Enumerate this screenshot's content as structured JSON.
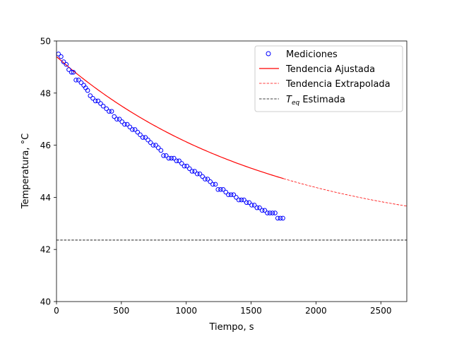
{
  "chart_data": {
    "type": "scatter",
    "xlabel": "Tiempo, s",
    "ylabel": "Temperatura, °C",
    "xlim": [
      0,
      2700
    ],
    "ylim": [
      40,
      50
    ],
    "xticks": [
      0,
      500,
      1000,
      1500,
      2000,
      2500
    ],
    "yticks": [
      40,
      42,
      44,
      46,
      48,
      50
    ],
    "grid": false,
    "legend_position": "top-right",
    "colors": {
      "measurements": "#0000ff",
      "fit": "#ff0000",
      "teq": "#000000"
    },
    "measurements": {
      "name": "Mediciones",
      "x": [
        15,
        35,
        55,
        75,
        95,
        115,
        130,
        150,
        170,
        190,
        210,
        225,
        240,
        260,
        280,
        300,
        320,
        340,
        360,
        385,
        405,
        425,
        445,
        465,
        485,
        505,
        525,
        545,
        565,
        585,
        605,
        625,
        645,
        665,
        685,
        705,
        725,
        745,
        765,
        785,
        805,
        825,
        845,
        865,
        885,
        905,
        925,
        945,
        965,
        985,
        1005,
        1025,
        1045,
        1065,
        1085,
        1105,
        1125,
        1145,
        1165,
        1185,
        1205,
        1225,
        1245,
        1265,
        1285,
        1305,
        1325,
        1345,
        1365,
        1385,
        1405,
        1425,
        1445,
        1465,
        1485,
        1505,
        1525,
        1545,
        1565,
        1585,
        1605,
        1625,
        1645,
        1665,
        1685,
        1705,
        1725,
        1745
      ],
      "y": [
        49.5,
        49.4,
        49.2,
        49.1,
        48.9,
        48.8,
        48.8,
        48.5,
        48.5,
        48.4,
        48.3,
        48.2,
        48.1,
        47.9,
        47.8,
        47.7,
        47.7,
        47.6,
        47.5,
        47.4,
        47.3,
        47.3,
        47.1,
        47.0,
        47.0,
        46.9,
        46.8,
        46.8,
        46.7,
        46.6,
        46.6,
        46.5,
        46.4,
        46.3,
        46.3,
        46.2,
        46.1,
        46.0,
        46.0,
        45.9,
        45.8,
        45.6,
        45.6,
        45.5,
        45.5,
        45.5,
        45.4,
        45.4,
        45.3,
        45.2,
        45.2,
        45.1,
        45.0,
        45.0,
        44.9,
        44.9,
        44.8,
        44.7,
        44.7,
        44.6,
        44.5,
        44.5,
        44.3,
        44.3,
        44.3,
        44.2,
        44.1,
        44.1,
        44.1,
        44.0,
        43.9,
        43.9,
        43.9,
        43.8,
        43.8,
        43.7,
        43.7,
        43.6,
        43.6,
        43.5,
        43.5,
        43.4,
        43.4,
        43.4,
        43.4,
        43.2,
        43.2,
        43.2
      ]
    },
    "fit": {
      "name": "Tendencia Ajustada",
      "model": "exponential",
      "teq": 42.36,
      "amplitude": 7.04,
      "tau": 1600,
      "x_range": [
        0,
        1750
      ]
    },
    "extrapolation": {
      "name": "Tendencia Extrapolada",
      "x_range": [
        1750,
        2700
      ]
    },
    "teq_line": {
      "name": "T_eq Estimada",
      "name_symbol": "T",
      "name_subscript": "eq",
      "name_suffix": " Estimada",
      "y": 42.36
    }
  }
}
